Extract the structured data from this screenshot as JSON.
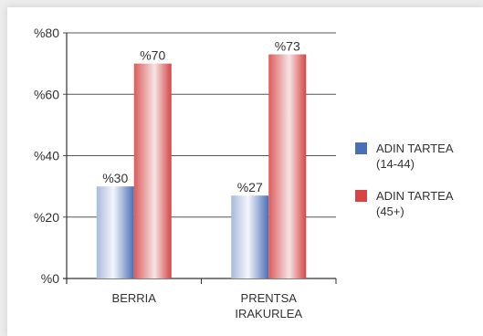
{
  "chart_data": {
    "type": "bar",
    "categories": [
      [
        "BERRIA"
      ],
      [
        "PRENTSA",
        "IRAKURLEA"
      ]
    ],
    "series": [
      {
        "name": [
          "ADIN TARTEA",
          "(14-44)"
        ],
        "values": [
          30,
          27
        ],
        "labels": [
          "%30",
          "%27"
        ],
        "color": "#4a6fb5"
      },
      {
        "name": [
          "ADIN TARTEA",
          "(45+)"
        ],
        "values": [
          70,
          73
        ],
        "labels": [
          "%70",
          "%73"
        ],
        "color": "#d64545"
      }
    ],
    "ylim": [
      0,
      80
    ],
    "yticks": [
      0,
      20,
      40,
      60,
      80
    ],
    "ytick_labels": [
      "%0",
      "%20",
      "%40",
      "%60",
      "%80"
    ],
    "grid": true,
    "legend": "right"
  }
}
